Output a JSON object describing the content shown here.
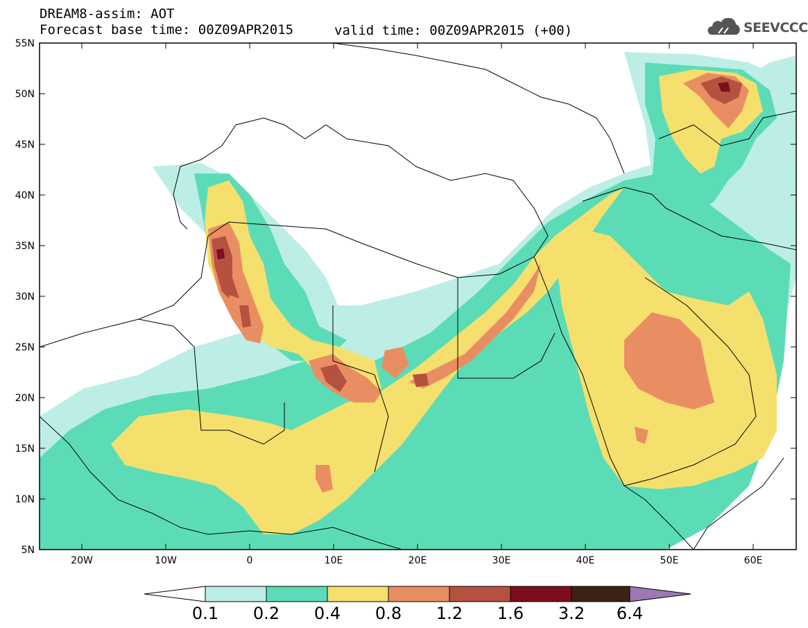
{
  "header": {
    "title": "DREAM8-assim: AOT",
    "subtitle": "Forecast base time: 00Z09APR2015",
    "valid_time": "valid time: 00Z09APR2015 (+00)"
  },
  "logo": {
    "text": "SEEVCCC",
    "icon": "cloud-icon"
  },
  "map": {
    "lat_labels": [
      "55N",
      "50N",
      "45N",
      "40N",
      "35N",
      "30N",
      "25N",
      "20N",
      "15N",
      "10N",
      "5N"
    ],
    "lon_labels": [
      "20W",
      "10W",
      "0",
      "10E",
      "20E",
      "30E",
      "40E",
      "50E",
      "60E"
    ],
    "extent": {
      "lon_min": -25,
      "lon_max": 65,
      "lat_min": 5,
      "lat_max": 55
    }
  },
  "legend": {
    "values": [
      "0.1",
      "0.2",
      "0.4",
      "0.8",
      "1.2",
      "1.6",
      "3.2",
      "6.4"
    ],
    "colors": [
      "#ffffff",
      "#bdeee6",
      "#5cdcb6",
      "#f5e06e",
      "#e98e62",
      "#b55140",
      "#7c0e1f",
      "#3c2214",
      "#9d78b4"
    ]
  }
}
